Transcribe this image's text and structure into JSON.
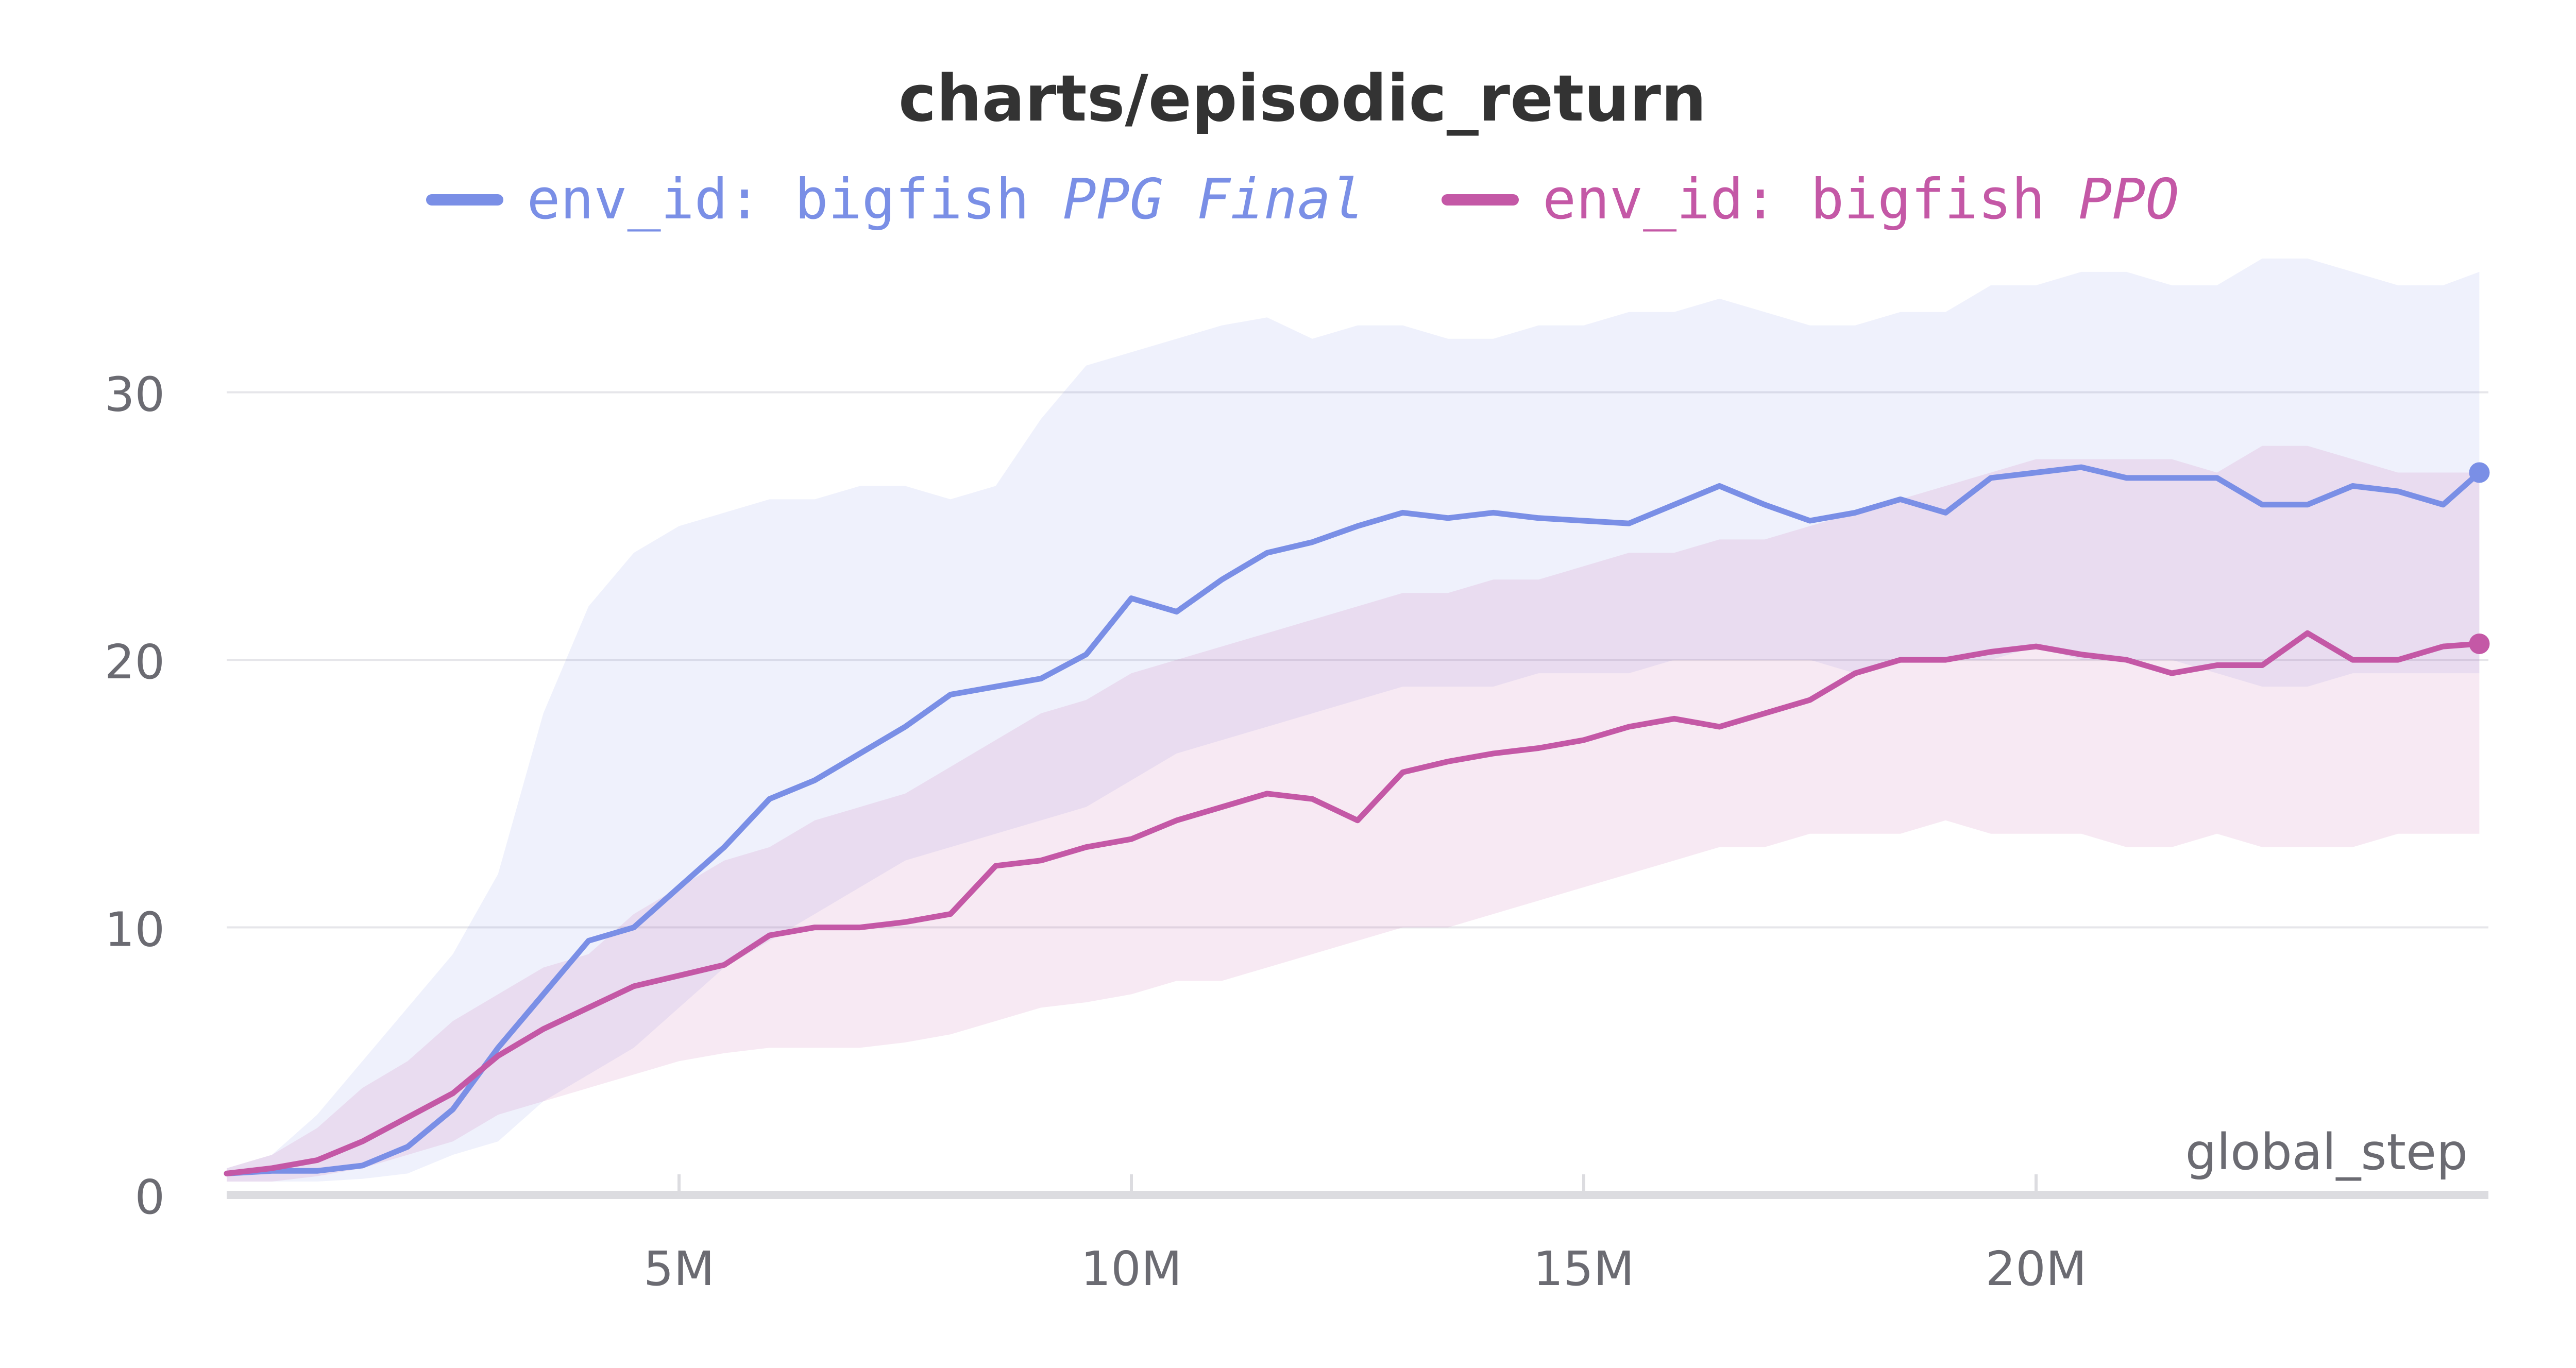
{
  "chart_data": {
    "type": "line",
    "title": "charts/episodic_return",
    "xlabel": "global_step",
    "ylabel": "",
    "xlim": [
      0,
      25000000
    ],
    "ylim": [
      0,
      36
    ],
    "x_ticks": [
      5000000,
      10000000,
      15000000,
      20000000
    ],
    "x_tick_labels": [
      "5M",
      "10M",
      "15M",
      "20M"
    ],
    "y_ticks": [
      0,
      10,
      20,
      30
    ],
    "y_tick_labels": [
      "0",
      "10",
      "20",
      "30"
    ],
    "grid": true,
    "legend_position": "top",
    "series": [
      {
        "name": "env_id: bigfish",
        "run": "PPG Final",
        "color": "#7a8fe6",
        "x": [
          0,
          500000,
          1000000,
          1500000,
          2000000,
          2500000,
          3000000,
          3500000,
          4000000,
          4500000,
          5000000,
          5500000,
          6000000,
          6500000,
          7000000,
          7500000,
          8000000,
          8500000,
          9000000,
          9500000,
          10000000,
          10500000,
          11000000,
          11500000,
          12000000,
          12500000,
          13000000,
          13500000,
          14000000,
          14500000,
          15000000,
          15500000,
          16000000,
          16500000,
          17000000,
          17500000,
          18000000,
          18500000,
          19000000,
          19500000,
          20000000,
          20500000,
          21000000,
          21500000,
          22000000,
          22500000,
          23000000,
          23500000,
          24000000,
          24500000,
          24900000
        ],
        "y": [
          0.8,
          0.9,
          0.9,
          1.1,
          1.8,
          3.2,
          5.5,
          7.5,
          9.5,
          10.0,
          11.5,
          13.0,
          14.8,
          15.5,
          16.5,
          17.5,
          18.7,
          19.0,
          19.3,
          20.2,
          22.3,
          21.8,
          23.0,
          24.0,
          24.4,
          25.0,
          25.5,
          25.3,
          25.5,
          25.3,
          25.2,
          25.1,
          25.8,
          26.5,
          25.8,
          25.2,
          25.5,
          26.0,
          25.5,
          26.8,
          27.0,
          27.2,
          26.8,
          26.8,
          26.8,
          25.8,
          25.8,
          26.5,
          26.3,
          25.8,
          27.0
        ],
        "band_upper": [
          1.0,
          1.5,
          3.0,
          5.0,
          7.0,
          9.0,
          12.0,
          18.0,
          22.0,
          24.0,
          25.0,
          25.5,
          26.0,
          26.0,
          26.5,
          26.5,
          26.0,
          26.5,
          29.0,
          31.0,
          31.5,
          32.0,
          32.5,
          32.8,
          32.0,
          32.5,
          32.5,
          32.0,
          32.0,
          32.5,
          32.5,
          33.0,
          33.0,
          33.5,
          33.0,
          32.5,
          32.5,
          33.0,
          33.0,
          34.0,
          34.0,
          34.5,
          34.5,
          34.0,
          34.0,
          35.0,
          35.0,
          34.5,
          34.0,
          34.0,
          34.5
        ],
        "band_lower": [
          0.5,
          0.5,
          0.5,
          0.6,
          0.8,
          1.5,
          2.0,
          3.5,
          4.5,
          5.5,
          7.0,
          8.5,
          9.5,
          10.5,
          11.5,
          12.5,
          13.0,
          13.5,
          14.0,
          14.5,
          15.5,
          16.5,
          17.0,
          17.5,
          18.0,
          18.5,
          19.0,
          19.0,
          19.0,
          19.5,
          19.5,
          19.5,
          20.0,
          20.0,
          20.0,
          20.0,
          19.5,
          20.0,
          20.0,
          20.0,
          20.5,
          20.0,
          20.0,
          20.0,
          19.5,
          19.0,
          19.0,
          19.5,
          19.5,
          19.5,
          19.5
        ]
      },
      {
        "name": "env_id: bigfish",
        "run": "PPO",
        "color": "#c458a6",
        "x": [
          0,
          500000,
          1000000,
          1500000,
          2000000,
          2500000,
          3000000,
          3500000,
          4000000,
          4500000,
          5000000,
          5500000,
          6000000,
          6500000,
          7000000,
          7500000,
          8000000,
          8500000,
          9000000,
          9500000,
          10000000,
          10500000,
          11000000,
          11500000,
          12000000,
          12500000,
          13000000,
          13500000,
          14000000,
          14500000,
          15000000,
          15500000,
          16000000,
          16500000,
          17000000,
          17500000,
          18000000,
          18500000,
          19000000,
          19500000,
          20000000,
          20500000,
          21000000,
          21500000,
          22000000,
          22500000,
          23000000,
          23500000,
          24000000,
          24500000,
          24900000
        ],
        "y": [
          0.8,
          1.0,
          1.3,
          2.0,
          2.9,
          3.8,
          5.2,
          6.2,
          7.0,
          7.8,
          8.2,
          8.6,
          9.7,
          10.0,
          10.0,
          10.2,
          10.5,
          12.3,
          12.5,
          13.0,
          13.3,
          14.0,
          14.5,
          15.0,
          14.8,
          14.0,
          15.8,
          16.2,
          16.5,
          16.7,
          17.0,
          17.5,
          17.8,
          17.5,
          18.0,
          18.5,
          19.5,
          20.0,
          20.0,
          20.3,
          20.5,
          20.2,
          20.0,
          19.5,
          19.8,
          19.8,
          21.0,
          20.0,
          20.0,
          20.5,
          20.6
        ],
        "band_upper": [
          1.0,
          1.5,
          2.5,
          4.0,
          5.0,
          6.5,
          7.5,
          8.5,
          9.0,
          10.5,
          11.5,
          12.5,
          13.0,
          14.0,
          14.5,
          15.0,
          16.0,
          17.0,
          18.0,
          18.5,
          19.5,
          20.0,
          20.5,
          21.0,
          21.5,
          22.0,
          22.5,
          22.5,
          23.0,
          23.0,
          23.5,
          24.0,
          24.0,
          24.5,
          24.5,
          25.0,
          25.5,
          26.0,
          26.5,
          27.0,
          27.5,
          27.5,
          27.5,
          27.5,
          27.0,
          28.0,
          28.0,
          27.5,
          27.0,
          27.0,
          27.0
        ],
        "band_lower": [
          0.5,
          0.5,
          0.7,
          1.0,
          1.5,
          2.0,
          3.0,
          3.5,
          4.0,
          4.5,
          5.0,
          5.3,
          5.5,
          5.5,
          5.5,
          5.7,
          6.0,
          6.5,
          7.0,
          7.2,
          7.5,
          8.0,
          8.0,
          8.5,
          9.0,
          9.5,
          10.0,
          10.0,
          10.5,
          11.0,
          11.5,
          12.0,
          12.5,
          13.0,
          13.0,
          13.5,
          13.5,
          13.5,
          14.0,
          13.5,
          13.5,
          13.5,
          13.0,
          13.0,
          13.5,
          13.0,
          13.0,
          13.0,
          13.5,
          13.5,
          13.5
        ]
      }
    ]
  }
}
